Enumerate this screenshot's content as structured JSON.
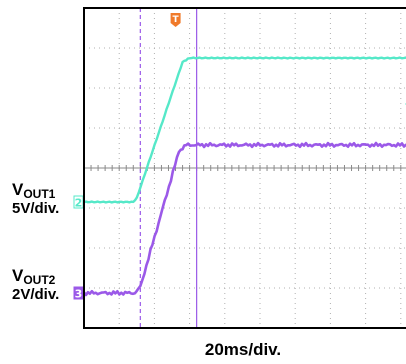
{
  "chart_data": {
    "type": "line",
    "x_unit": "ms",
    "x_scale": "20ms/div.",
    "x_divisions": 10,
    "y_divisions": 8,
    "xlim": [
      0,
      200
    ],
    "series": [
      {
        "name": "V_OUT1",
        "label_main": "V",
        "label_sub": "OUT1",
        "scale": "5V/div.",
        "volts_per_div": 5,
        "marker": "2",
        "color": "#55e8c8",
        "x": [
          0,
          28,
          30,
          56,
          60,
          200
        ],
        "y": [
          0,
          0,
          0.5,
          17.5,
          18,
          18
        ]
      },
      {
        "name": "V_OUT2",
        "label_main": "V",
        "label_sub": "OUT2",
        "scale": "2V/div.",
        "volts_per_div": 2,
        "marker": "3",
        "color": "#9b59e8",
        "x": [
          0,
          29,
          32,
          54,
          58,
          200
        ],
        "y": [
          0,
          0,
          0.3,
          7.1,
          7.4,
          7.4
        ]
      }
    ],
    "cursors": {
      "color": "#9b59e8",
      "x": [
        32,
        64
      ]
    },
    "trigger_marker": {
      "text": "T",
      "color": "#f07a2a",
      "x": 60
    },
    "grid": true
  }
}
